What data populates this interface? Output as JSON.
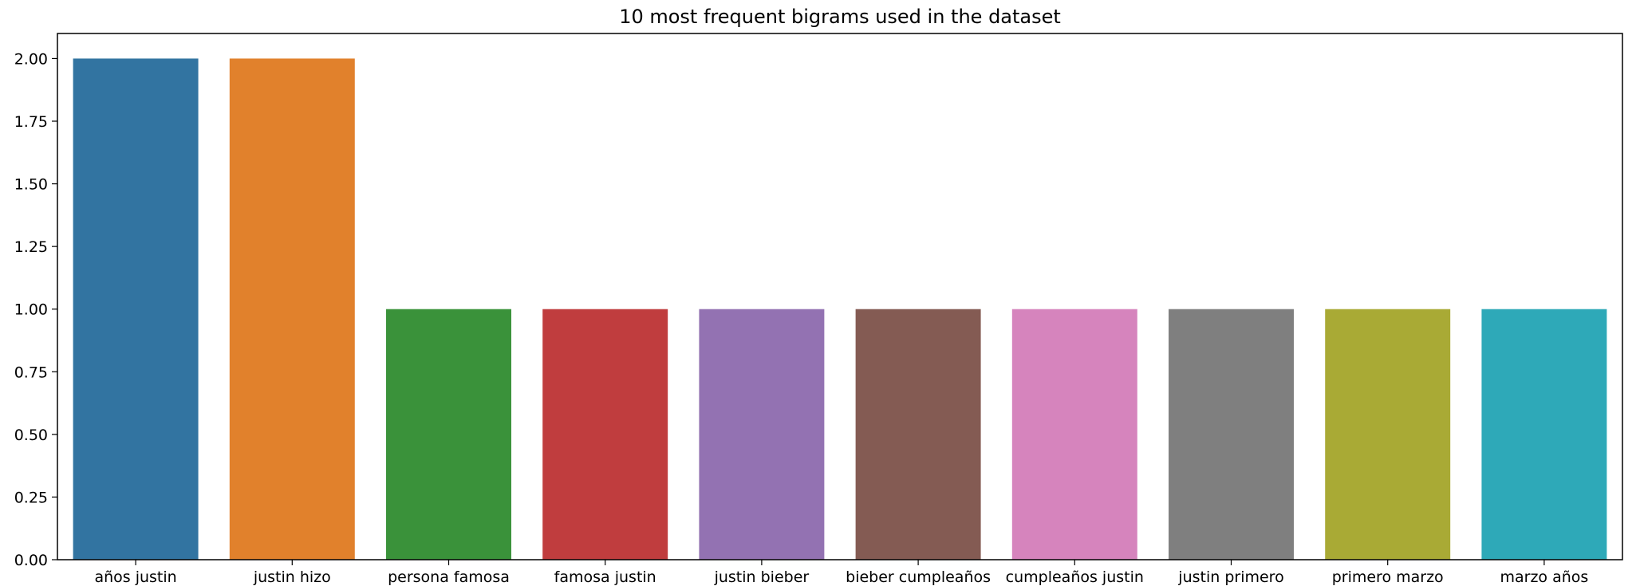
{
  "chart_data": {
    "type": "bar",
    "title": "10 most frequent bigrams used in the dataset",
    "xlabel": "",
    "ylabel": "",
    "categories": [
      "años justin",
      "justin hizo",
      "persona famosa",
      "famosa justin",
      "justin bieber",
      "bieber cumpleaños",
      "cumpleaños justin",
      "justin primero",
      "primero marzo",
      "marzo años"
    ],
    "values": [
      2,
      2,
      1,
      1,
      1,
      1,
      1,
      1,
      1,
      1
    ],
    "colors": [
      "#3274a1",
      "#e1812c",
      "#3a923a",
      "#c03d3e",
      "#9372b2",
      "#845b53",
      "#d684bd",
      "#7f7f7f",
      "#a9aa35",
      "#2ea9b8"
    ],
    "ylim": [
      0,
      2.1
    ],
    "yticks": [
      "0.00",
      "0.25",
      "0.50",
      "0.75",
      "1.00",
      "1.25",
      "1.50",
      "1.75",
      "2.00"
    ],
    "grid": false,
    "legend": "none"
  }
}
